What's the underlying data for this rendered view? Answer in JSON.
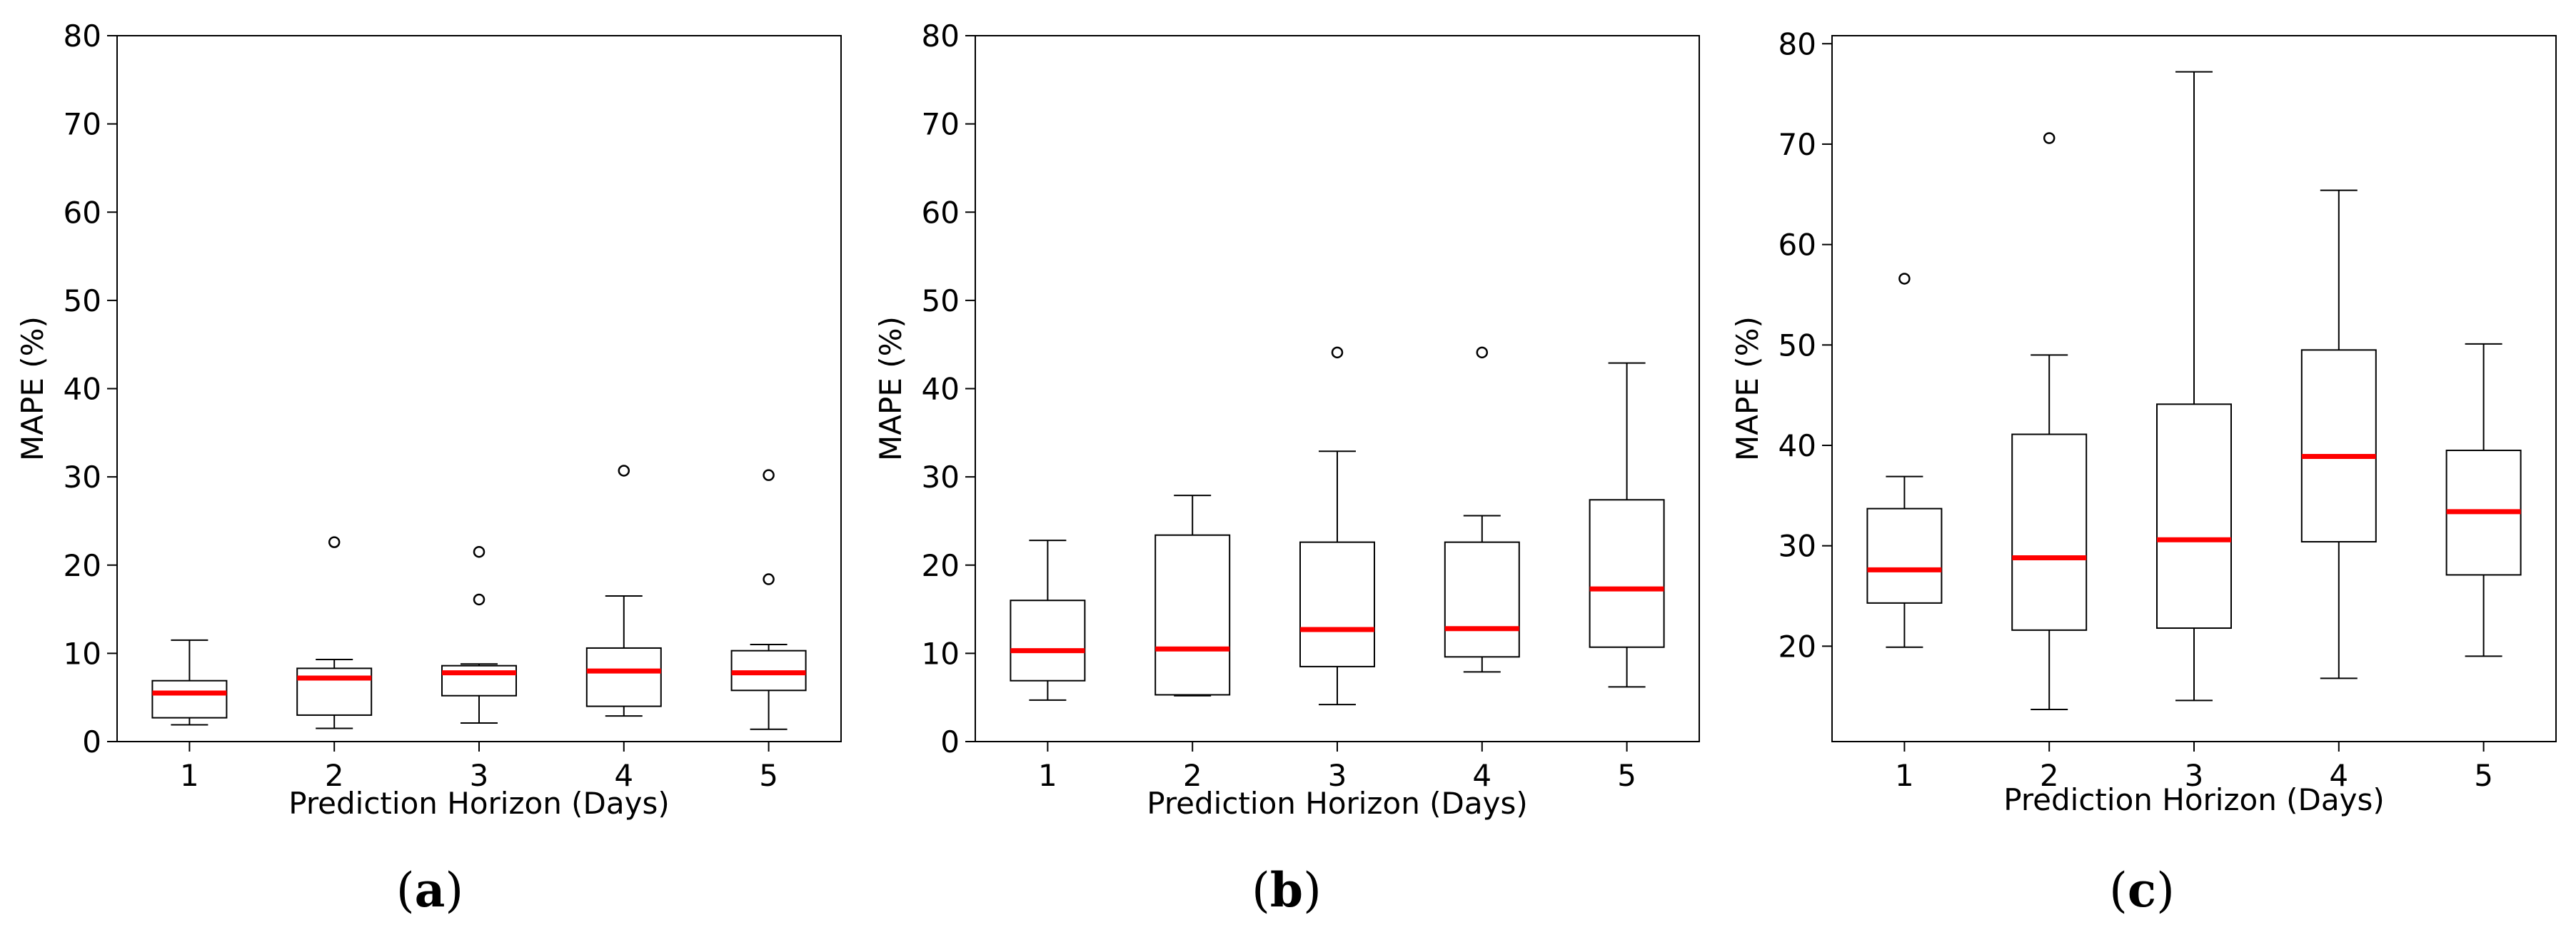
{
  "chart_data": [
    {
      "type": "box",
      "panel_label": "a",
      "xlabel": "Prediction Horizon (Days)",
      "ylabel": "MAPE (%)",
      "ylim": [
        0,
        80
      ],
      "yticks": [
        0,
        10,
        20,
        30,
        40,
        50,
        60,
        70,
        80
      ],
      "categories": [
        "1",
        "2",
        "3",
        "4",
        "5"
      ],
      "boxes": [
        {
          "whisker_low": 1.9,
          "q1": 2.7,
          "median": 5.5,
          "q3": 6.9,
          "whisker_high": 11.5,
          "outliers": []
        },
        {
          "whisker_low": 1.5,
          "q1": 3.0,
          "median": 7.2,
          "q3": 8.3,
          "whisker_high": 9.3,
          "outliers": [
            22.6
          ]
        },
        {
          "whisker_low": 2.1,
          "q1": 5.2,
          "median": 7.8,
          "q3": 8.6,
          "whisker_high": 8.8,
          "outliers": [
            16.1,
            21.5
          ]
        },
        {
          "whisker_low": 2.9,
          "q1": 4.0,
          "median": 8.0,
          "q3": 10.6,
          "whisker_high": 16.5,
          "outliers": [
            30.7
          ]
        },
        {
          "whisker_low": 1.4,
          "q1": 5.8,
          "median": 7.8,
          "q3": 10.3,
          "whisker_high": 11.0,
          "outliers": [
            18.4,
            30.2
          ]
        }
      ]
    },
    {
      "type": "box",
      "panel_label": "b",
      "xlabel": "Prediction Horizon (Days)",
      "ylabel": "MAPE (%)",
      "ylim": [
        0,
        80
      ],
      "yticks": [
        0,
        10,
        20,
        30,
        40,
        50,
        60,
        70,
        80
      ],
      "categories": [
        "1",
        "2",
        "3",
        "4",
        "5"
      ],
      "boxes": [
        {
          "whisker_low": 4.7,
          "q1": 6.9,
          "median": 10.3,
          "q3": 16.0,
          "whisker_high": 22.8,
          "outliers": []
        },
        {
          "whisker_low": 5.2,
          "q1": 5.3,
          "median": 10.5,
          "q3": 23.4,
          "whisker_high": 27.9,
          "outliers": []
        },
        {
          "whisker_low": 4.2,
          "q1": 8.5,
          "median": 12.7,
          "q3": 22.6,
          "whisker_high": 32.9,
          "outliers": [
            44.1
          ]
        },
        {
          "whisker_low": 7.9,
          "q1": 9.6,
          "median": 12.8,
          "q3": 22.6,
          "whisker_high": 25.6,
          "outliers": [
            44.1
          ]
        },
        {
          "whisker_low": 6.2,
          "q1": 10.7,
          "median": 17.3,
          "q3": 27.4,
          "whisker_high": 42.9,
          "outliers": []
        }
      ]
    },
    {
      "type": "box",
      "panel_label": "c",
      "xlabel": "Prediction Horizon (Days)",
      "ylabel": "MAPE (%)",
      "ylim": [
        10.5,
        80.8
      ],
      "yticks": [
        20,
        30,
        40,
        50,
        60,
        70,
        80
      ],
      "categories": [
        "1",
        "2",
        "3",
        "4",
        "5"
      ],
      "boxes": [
        {
          "whisker_low": 19.9,
          "q1": 24.3,
          "median": 27.6,
          "q3": 33.7,
          "whisker_high": 36.9,
          "outliers": [
            56.6
          ]
        },
        {
          "whisker_low": 13.7,
          "q1": 21.6,
          "median": 28.8,
          "q3": 41.1,
          "whisker_high": 49.0,
          "outliers": [
            70.6
          ]
        },
        {
          "whisker_low": 14.6,
          "q1": 21.8,
          "median": 30.6,
          "q3": 44.1,
          "whisker_high": 77.2,
          "outliers": []
        },
        {
          "whisker_low": 16.8,
          "q1": 30.4,
          "median": 38.9,
          "q3": 49.5,
          "whisker_high": 65.4,
          "outliers": []
        },
        {
          "whisker_low": 19.0,
          "q1": 27.1,
          "median": 33.4,
          "q3": 39.5,
          "whisker_high": 50.1,
          "outliers": []
        }
      ]
    }
  ],
  "colors": {
    "median": "#ff0000",
    "box_edge": "#000000",
    "outlier_edge": "#000000",
    "axes": "#000000",
    "background": "#ffffff"
  }
}
